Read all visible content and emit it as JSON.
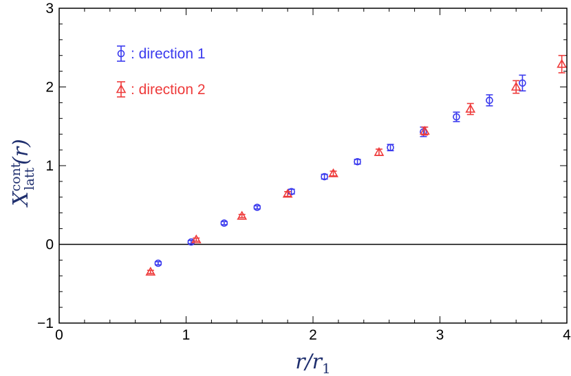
{
  "chart_data": {
    "type": "scatter",
    "xlabel": "r/r₁",
    "ylabel": "X_latt^cont(r)",
    "ylabel_parts": {
      "base": "X",
      "sub": "latt",
      "sup": "cont",
      "arg": "(r)"
    },
    "xlabel_parts": {
      "num": "r",
      "den": "r",
      "den_sub": "1"
    },
    "xlim": [
      0,
      4
    ],
    "ylim": [
      -1,
      3
    ],
    "x_ticks": [
      "0",
      "1",
      "2",
      "3",
      "4"
    ],
    "y_ticks": [
      "−1",
      "0",
      "1",
      "2",
      "3"
    ],
    "x_tick_values": [
      0,
      1,
      2,
      3,
      4
    ],
    "y_tick_values": [
      -1,
      0,
      1,
      2,
      3
    ],
    "zero_line": true,
    "legend_position": "top-left",
    "series": [
      {
        "name": ": direction 1",
        "marker": "circle",
        "color": "#3a3aee",
        "points": [
          {
            "x": 0.78,
            "y": -0.24,
            "err": 0.02
          },
          {
            "x": 1.04,
            "y": 0.03,
            "err": 0.02
          },
          {
            "x": 1.3,
            "y": 0.27,
            "err": 0.02
          },
          {
            "x": 1.56,
            "y": 0.47,
            "err": 0.02
          },
          {
            "x": 1.83,
            "y": 0.67,
            "err": 0.03
          },
          {
            "x": 2.09,
            "y": 0.86,
            "err": 0.03
          },
          {
            "x": 2.35,
            "y": 1.05,
            "err": 0.03
          },
          {
            "x": 2.61,
            "y": 1.23,
            "err": 0.04
          },
          {
            "x": 2.87,
            "y": 1.43,
            "err": 0.06
          },
          {
            "x": 3.13,
            "y": 1.62,
            "err": 0.06
          },
          {
            "x": 3.39,
            "y": 1.83,
            "err": 0.07
          },
          {
            "x": 3.65,
            "y": 2.05,
            "err": 0.1
          }
        ]
      },
      {
        "name": ": direction 2",
        "marker": "triangle",
        "color": "#ee3a3a",
        "points": [
          {
            "x": 0.72,
            "y": -0.35,
            "err": 0.02
          },
          {
            "x": 1.08,
            "y": 0.06,
            "err": 0.02
          },
          {
            "x": 1.44,
            "y": 0.36,
            "err": 0.02
          },
          {
            "x": 1.8,
            "y": 0.64,
            "err": 0.03
          },
          {
            "x": 2.16,
            "y": 0.9,
            "err": 0.03
          },
          {
            "x": 2.52,
            "y": 1.17,
            "err": 0.04
          },
          {
            "x": 2.88,
            "y": 1.44,
            "err": 0.05
          },
          {
            "x": 3.24,
            "y": 1.72,
            "err": 0.07
          },
          {
            "x": 3.6,
            "y": 2.0,
            "err": 0.08
          },
          {
            "x": 3.96,
            "y": 2.29,
            "err": 0.11
          }
        ]
      }
    ]
  }
}
